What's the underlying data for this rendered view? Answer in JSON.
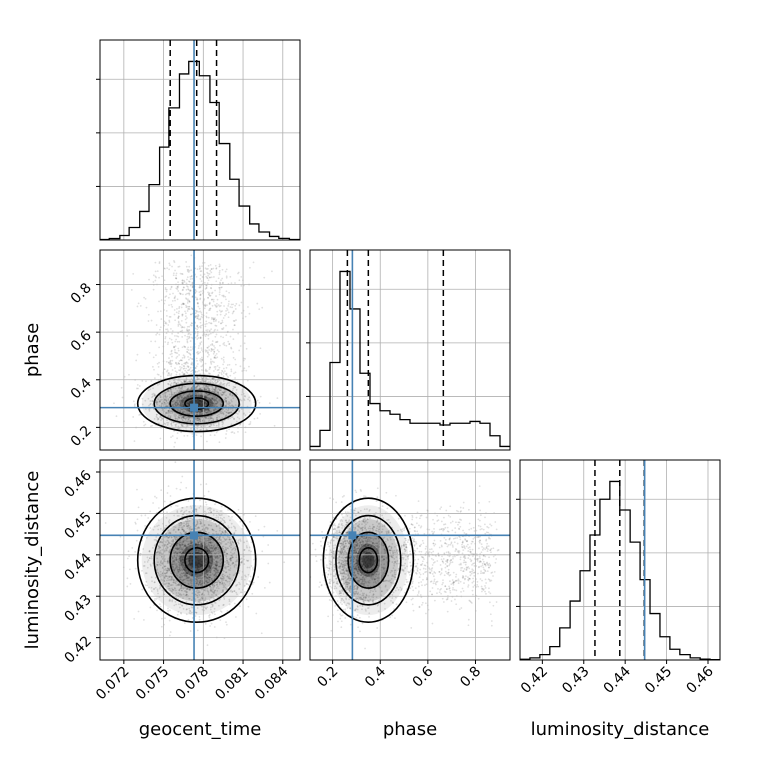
{
  "chart_data": {
    "type": "corner",
    "parameters": [
      "geocent_time",
      "phase",
      "luminosity_distance"
    ],
    "axis_labels": {
      "geocent_time": "geocent_time",
      "phase": "phase",
      "luminosity_distance": "luminosity_distance"
    },
    "ranges": {
      "geocent_time": [
        0.0702,
        0.0853
      ],
      "phase": [
        0.105,
        0.945
      ],
      "luminosity_distance": [
        0.4146,
        0.4629
      ]
    },
    "ticks": {
      "geocent_time": [
        0.072,
        0.075,
        0.078,
        0.081,
        0.084
      ],
      "phase": [
        0.2,
        0.4,
        0.6,
        0.8
      ],
      "luminosity_distance": [
        0.42,
        0.43,
        0.44,
        0.45,
        0.46
      ]
    },
    "tick_labels": {
      "geocent_time": [
        "0.072",
        "0.075",
        "0.078",
        "0.081",
        "0.084"
      ],
      "phase": [
        "0.2",
        "0.4",
        "0.6",
        "0.8"
      ],
      "luminosity_distance": [
        "0.42",
        "0.43",
        "0.44",
        "0.45",
        "0.46"
      ]
    },
    "truths": {
      "geocent_time": 0.0773,
      "phase": 0.283,
      "luminosity_distance": 0.4447
    },
    "quantiles": {
      "geocent_time": [
        0.0755,
        0.0775,
        0.079
      ],
      "phase": [
        0.262,
        0.35,
        0.665
      ],
      "luminosity_distance": [
        0.4327,
        0.4387,
        0.4446
      ]
    },
    "histograms_1d": {
      "geocent_time": {
        "bin_edges": [
          0.0702,
          0.0709,
          0.0717,
          0.0724,
          0.0732,
          0.0739,
          0.0747,
          0.0754,
          0.0762,
          0.0769,
          0.0777,
          0.0785,
          0.0792,
          0.08,
          0.0807,
          0.0815,
          0.0822,
          0.083,
          0.0837,
          0.0845,
          0.0853
        ],
        "counts": [
          0.3,
          0.8,
          2.5,
          7,
          16,
          31,
          52,
          74,
          93,
          100,
          92,
          77,
          54,
          34,
          19,
          9,
          4.5,
          2,
          0.9,
          0.3
        ]
      },
      "phase": {
        "bin_edges": [
          0.105,
          0.147,
          0.189,
          0.231,
          0.273,
          0.315,
          0.357,
          0.399,
          0.441,
          0.483,
          0.525,
          0.567,
          0.609,
          0.651,
          0.693,
          0.735,
          0.777,
          0.819,
          0.861,
          0.903,
          0.945
        ],
        "counts": [
          2,
          11,
          49,
          100,
          79,
          43,
          26,
          22,
          20,
          17,
          15,
          15,
          15,
          14,
          15,
          15,
          16,
          15,
          8,
          2
        ]
      },
      "luminosity_distance": {
        "bin_edges": [
          0.4146,
          0.417,
          0.4194,
          0.4218,
          0.4242,
          0.4267,
          0.4291,
          0.4315,
          0.4339,
          0.4363,
          0.4387,
          0.4412,
          0.4436,
          0.446,
          0.4484,
          0.4508,
          0.4532,
          0.4557,
          0.4581,
          0.4605,
          0.4629
        ],
        "counts": [
          0.4,
          1.2,
          3,
          7.5,
          18,
          33,
          50,
          70,
          90,
          100,
          84,
          66,
          45,
          26,
          13,
          6,
          3,
          1.2,
          0.5,
          0.2
        ]
      },
      "y_ticks": [
        0.3,
        0.6,
        0.9
      ]
    }
  }
}
